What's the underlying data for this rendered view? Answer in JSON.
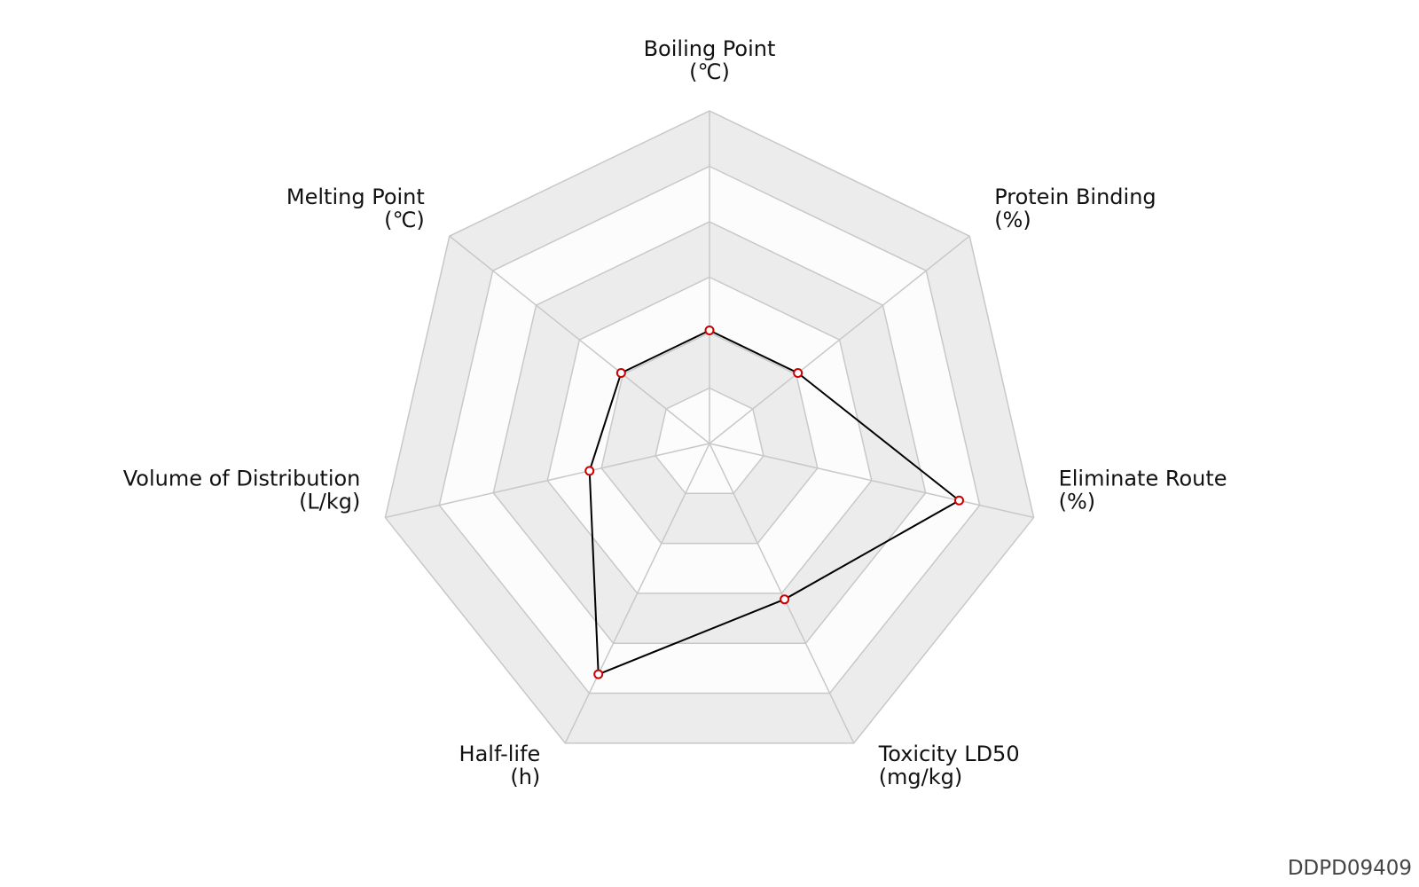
{
  "chart_data": {
    "type": "radar",
    "title": "",
    "axes": [
      {
        "name": "Boiling Point",
        "unit": "(℃)"
      },
      {
        "name": "Protein Binding",
        "unit": "(%)"
      },
      {
        "name": "Eliminate Route",
        "unit": "(%)"
      },
      {
        "name": "Toxicity LD50",
        "unit": "(mg/kg)"
      },
      {
        "name": "Half-life",
        "unit": "(h)"
      },
      {
        "name": "Volume of Distribution",
        "unit": "(L/kg)"
      },
      {
        "name": "Melting Point",
        "unit": "(℃)"
      }
    ],
    "rings": 6,
    "series": [
      {
        "values": [
          0.34,
          0.34,
          0.77,
          0.52,
          0.77,
          0.37,
          0.34
        ]
      }
    ],
    "colors": {
      "series_line": "#000000",
      "marker_edge": "#cc0000",
      "marker_fill": "#ffffff",
      "grid_line": "#c8c8c8",
      "band_shade": "#ececec",
      "band_light": "#fcfcfc"
    }
  },
  "watermark": "DDPD09409"
}
